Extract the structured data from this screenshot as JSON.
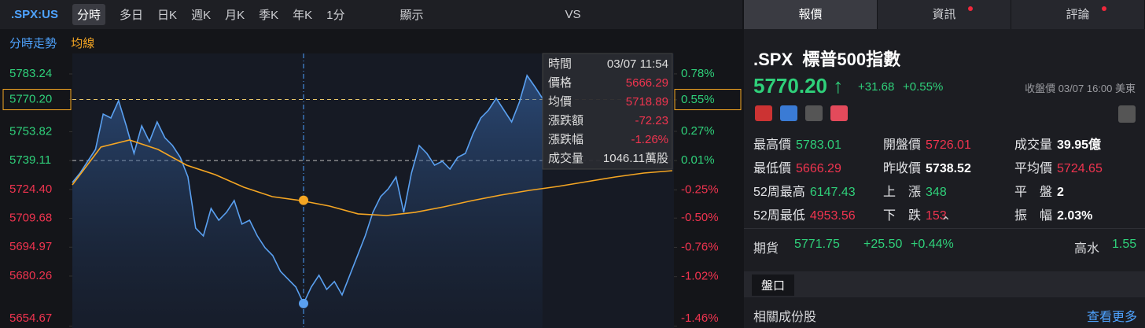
{
  "toolbar": {
    "symbol": ".SPX:US",
    "tabs": [
      "分時",
      "多日",
      "日K",
      "週K",
      "月K",
      "季K",
      "年K",
      "1分"
    ],
    "display": "顯示",
    "vs": "VS"
  },
  "chart": {
    "legend": [
      "分時走勢",
      "均線"
    ],
    "ylim": [
      5653.8,
      5793.66
    ],
    "yticks": [
      5783.24,
      {
        "value": 5770.2,
        "label": "5770.20"
      },
      5753.82,
      5739.11,
      {
        "value": 5724.4,
        "label": "5724.40"
      },
      5709.68,
      5694.97,
      5680.26,
      5654.67
    ],
    "y2lim": [
      -1.476,
      0.961
    ],
    "y2ticks": [
      {
        "value": 0.78,
        "label": "0.78%"
      },
      {
        "value": 0.55,
        "label": "0.55%"
      },
      {
        "value": 0.27,
        "label": "0.27%"
      },
      {
        "value": 0.01,
        "label": "0.01%"
      },
      {
        "value": -0.25,
        "label": "-0.25%"
      },
      {
        "value": -0.5,
        "label": "-0.50%"
      },
      {
        "value": -0.76,
        "label": "-0.76%"
      },
      {
        "value": -1.02,
        "label": "-1.02%"
      },
      {
        "value": -1.46,
        "label": "-1.46%"
      }
    ],
    "series": [
      {
        "name": "分時走勢",
        "color": "#5aa0f0",
        "values": [
          5727.95,
          5732.76,
          5738.77,
          5744.78,
          5762.81,
          5760.8,
          5769.62,
          5756.8,
          5742.78,
          5756.8,
          5748.79,
          5758.8,
          5750.79,
          5746.78,
          5740.77,
          5730.76,
          5704.71,
          5700.71,
          5714.73,
          5708.72,
          5712.73,
          5718.74,
          5706.72,
          5708.72,
          5700.71,
          5694.7,
          5690.69,
          5682.68,
          5678.67,
          5674.67,
          5666.29,
          5674.67,
          5680.68,
          5673.46,
          5677.47,
          5670.66,
          5680.68,
          5690.69,
          5700.71,
          5712.73,
          5720.74,
          5724.75,
          5730.76,
          5712.73,
          5732.76,
          5746.78,
          5742.78,
          5736.77,
          5738.77,
          5734.76,
          5740.77,
          5742.78,
          5752.79,
          5760.8,
          5764.81,
          5770.82,
          5764.81,
          5758.8,
          5768.82,
          5782.44,
          5776.83,
          5770.82
        ]
      },
      {
        "name": "均線",
        "color": "#f5a623",
        "values": [
          5726.75,
          5745.98,
          5749.59,
          5744.78,
          5736.77,
          5731.96,
          5725.55,
          5720.74,
          5718.74,
          5715.93,
          5711.93,
          5711.12,
          5712.73,
          5715.53,
          5718.74,
          5721.54,
          5723.94,
          5725.95,
          5728.35,
          5730.76,
          5732.76,
          5733.96
        ]
      }
    ],
    "current": {
      "value": 5770.2,
      "label": "5770.20"
    },
    "prev_close_line": 5739.11,
    "tooltip": {
      "rows": [
        [
          "時間",
          "03/07 11:54"
        ],
        [
          "價格",
          "5666.29"
        ],
        [
          "均價",
          "5718.89"
        ],
        [
          "漲跌額",
          "-72.23"
        ],
        [
          "漲跌幅",
          "-1.26%"
        ],
        [
          "成交量",
          "1046.11萬股"
        ]
      ],
      "price": 5666.29,
      "avg": 5718.89
    }
  },
  "panel": {
    "tabs": [
      "報價",
      "資訊",
      "評論"
    ],
    "symbol": ".SPX",
    "name": "標普500指數",
    "price": "5770.20",
    "change": "+31.68",
    "change_pct": "+0.55%",
    "close_note": "收盤價 03/07 16:00 美東",
    "stats": [
      [
        "最高價",
        "5783.01",
        "g"
      ],
      [
        "開盤價",
        "5726.01",
        "r"
      ],
      [
        "成交量",
        "39.95億",
        "w"
      ],
      [
        "最低價",
        "5666.29",
        "r"
      ],
      [
        "昨收價",
        "5738.52",
        "w"
      ],
      [
        "平均價",
        "5724.65",
        "r"
      ],
      [
        "52周最高",
        "6147.43",
        "g"
      ],
      [
        "上　漲",
        "348",
        "g"
      ],
      [
        "平　盤",
        "2",
        "w"
      ],
      [
        "52周最低",
        "4953.56",
        "r"
      ],
      [
        "下　跌",
        "153",
        "r"
      ],
      [
        "振　幅",
        "2.03%",
        "w"
      ]
    ],
    "futures": {
      "label": "期貨",
      "price": "5771.75",
      "change": "+25.50",
      "pct": "+0.44%",
      "premium_label": "高水",
      "premium": "1.55"
    },
    "depth": "盤口",
    "related": "相關成份股",
    "more": "查看更多"
  }
}
